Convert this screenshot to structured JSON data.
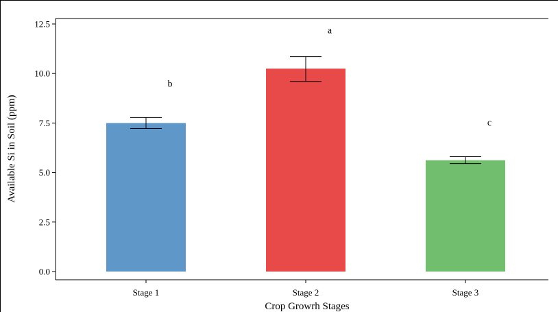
{
  "chart_data": {
    "type": "bar",
    "categories": [
      "Stage 1",
      "Stage 2",
      "Stage 3"
    ],
    "values": [
      7.5,
      10.25,
      5.62
    ],
    "errors": [
      [
        7.22,
        7.78
      ],
      [
        9.6,
        10.85
      ],
      [
        5.45,
        5.8
      ]
    ],
    "significance_letters": [
      "b",
      "a",
      "c"
    ],
    "significance_y": [
      9.5,
      12.2,
      7.55
    ],
    "colors": [
      "#5f97c8",
      "#e84a4a",
      "#70be6e"
    ],
    "xlabel": "Crop Growrh Stages",
    "ylabel": "Available Si in Soil (ppm)",
    "ylim": [
      0,
      12.5
    ],
    "yticks": [
      0,
      2.5,
      5,
      7.5,
      10,
      12.5
    ],
    "ytick_labels": [
      "0.0",
      "2.5",
      "5.0",
      "7.5",
      "10.0",
      "12.5"
    ],
    "grid": false,
    "legend": "none"
  }
}
